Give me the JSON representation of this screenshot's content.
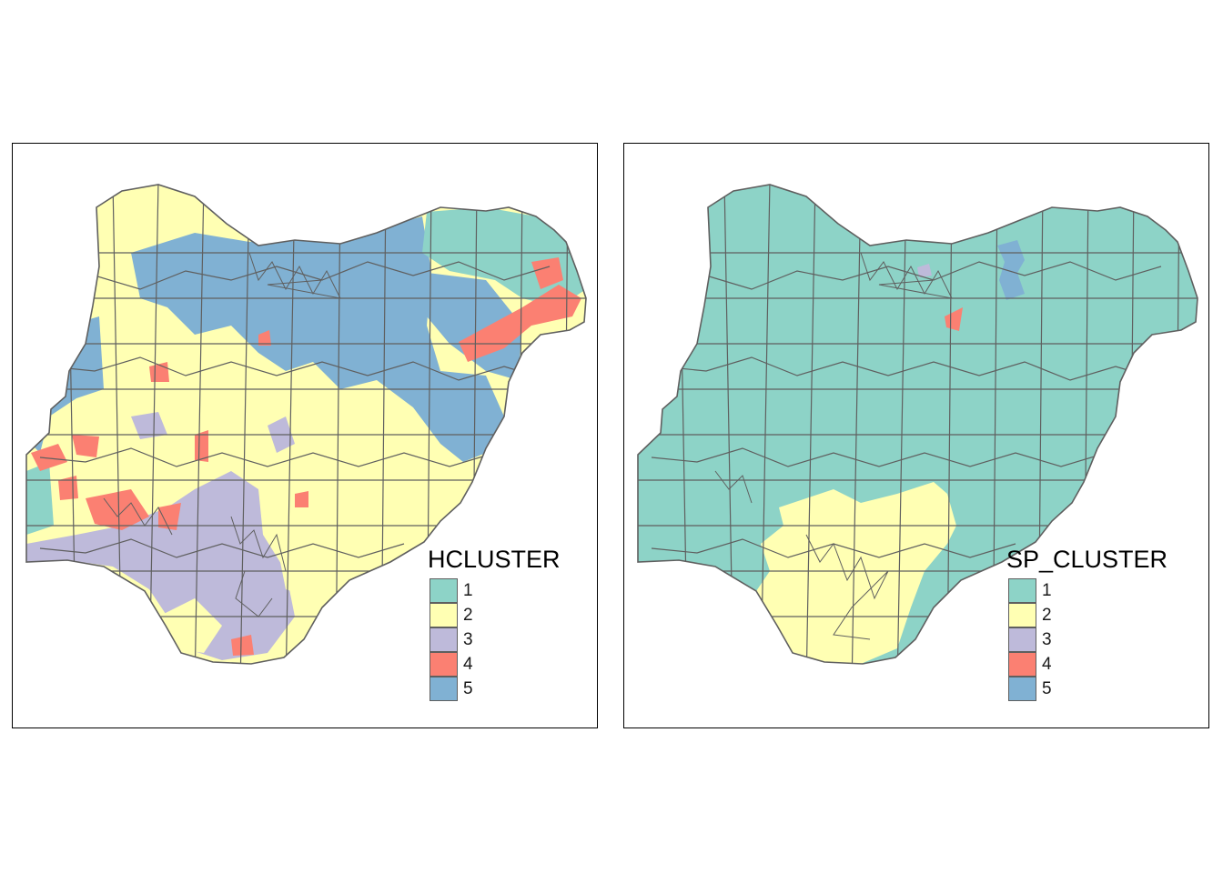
{
  "maps": [
    {
      "id": "left",
      "legend_title": "HCLUSTER",
      "dominant_cluster": "mixed",
      "regions_note": "1: northeast; 2: north-central/west yellow; 3: southwest lavender; 4: scattered red; 5: north-central blue"
    },
    {
      "id": "right",
      "legend_title": "SP_CLUSTER",
      "dominant_cluster": "1",
      "regions_note": "1: most of country; 2: south; 3: small north patch; 4: small north-central patch; 5: north-east patch"
    }
  ],
  "legend": {
    "items": [
      {
        "label": "1",
        "color": "#8dd3c7"
      },
      {
        "label": "2",
        "color": "#ffffb3"
      },
      {
        "label": "3",
        "color": "#bebada"
      },
      {
        "label": "4",
        "color": "#fb8072"
      },
      {
        "label": "5",
        "color": "#80b1d3"
      }
    ]
  },
  "border_color": "#5f5f5f"
}
